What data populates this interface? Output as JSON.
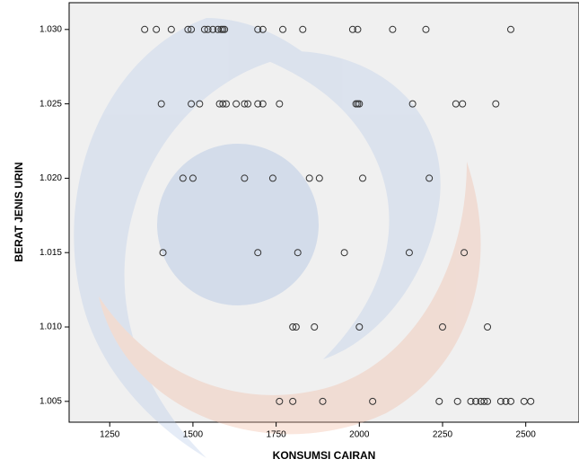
{
  "chart_data": {
    "type": "scatter",
    "x_label": "KONSUMSI CAIRAN",
    "y_label": "BERAT JENIS URIN",
    "x": [
      1355,
      1390,
      1435,
      1485,
      1495,
      1535,
      1545,
      1560,
      1575,
      1585,
      1590,
      1595,
      1695,
      1710,
      1770,
      1830,
      1980,
      1995,
      2100,
      2200,
      2455,
      1405,
      1495,
      1520,
      1580,
      1590,
      1600,
      1630,
      1655,
      1665,
      1695,
      1710,
      1760,
      1990,
      1995,
      2000,
      2160,
      2290,
      2310,
      2410,
      1470,
      1500,
      1655,
      1740,
      1850,
      1880,
      2010,
      2210,
      1410,
      1695,
      1815,
      1955,
      2150,
      2315,
      1800,
      1810,
      1865,
      2000,
      2250,
      2385,
      1760,
      1800,
      1890,
      2040,
      2240,
      2295,
      2335,
      2350,
      2365,
      2375,
      2385,
      2425,
      2440,
      2455,
      2495,
      2515
    ],
    "values": [
      1.03,
      1.03,
      1.03,
      1.03,
      1.03,
      1.03,
      1.03,
      1.03,
      1.03,
      1.03,
      1.03,
      1.03,
      1.03,
      1.03,
      1.03,
      1.03,
      1.03,
      1.03,
      1.03,
      1.03,
      1.03,
      1.025,
      1.025,
      1.025,
      1.025,
      1.025,
      1.025,
      1.025,
      1.025,
      1.025,
      1.025,
      1.025,
      1.025,
      1.025,
      1.025,
      1.025,
      1.025,
      1.025,
      1.025,
      1.025,
      1.02,
      1.02,
      1.02,
      1.02,
      1.02,
      1.02,
      1.02,
      1.02,
      1.015,
      1.015,
      1.015,
      1.015,
      1.015,
      1.015,
      1.01,
      1.01,
      1.01,
      1.01,
      1.01,
      1.01,
      1.005,
      1.005,
      1.005,
      1.005,
      1.005,
      1.005,
      1.005,
      1.005,
      1.005,
      1.005,
      1.005,
      1.005,
      1.005,
      1.005,
      1.005,
      1.005
    ],
    "color": "#333333",
    "xlim": [
      1128,
      2660
    ],
    "ylim": [
      1.0036,
      1.0318
    ],
    "xticks": [
      1250,
      1500,
      1750,
      2000,
      2250,
      2500
    ],
    "yticks": [
      {
        "value": 1.005,
        "label": "1.005"
      },
      {
        "value": 1.01,
        "label": "1.010"
      },
      {
        "value": 1.015,
        "label": "1.015"
      },
      {
        "value": 1.02,
        "label": "1.020"
      },
      {
        "value": 1.025,
        "label": "1.025"
      },
      {
        "value": 1.03,
        "label": "1.030"
      }
    ]
  }
}
